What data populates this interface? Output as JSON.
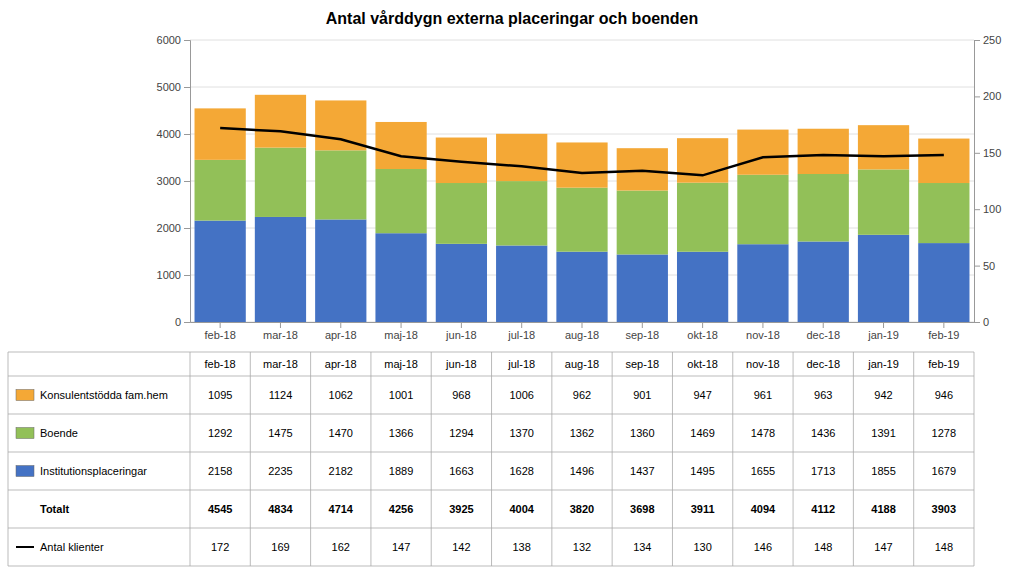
{
  "chart_data": {
    "type": "bar",
    "title": "Antal vårddygn externa placeringar och boenden",
    "categories": [
      "feb-18",
      "mar-18",
      "apr-18",
      "maj-18",
      "jun-18",
      "jul-18",
      "aug-18",
      "sep-18",
      "okt-18",
      "nov-18",
      "dec-18",
      "jan-19",
      "feb-19"
    ],
    "stacked": true,
    "grid": true,
    "series": [
      {
        "name": "Institutionsplaceringar",
        "type": "bar",
        "color": "#4472C4",
        "values": [
          2158,
          2235,
          2182,
          1889,
          1663,
          1628,
          1496,
          1437,
          1495,
          1655,
          1713,
          1855,
          1679
        ]
      },
      {
        "name": "Boende",
        "type": "bar",
        "color": "#92C058",
        "values": [
          1292,
          1475,
          1470,
          1366,
          1294,
          1370,
          1362,
          1360,
          1469,
          1478,
          1436,
          1391,
          1278
        ]
      },
      {
        "name": "Konsulentstödda fam.hem",
        "type": "bar",
        "color": "#F4A836",
        "values": [
          1095,
          1124,
          1062,
          1001,
          968,
          1006,
          962,
          901,
          947,
          961,
          963,
          942,
          946
        ]
      },
      {
        "name": "Antal klienter",
        "type": "line",
        "axis": "y2",
        "color": "#000000",
        "values": [
          172,
          169,
          162,
          147,
          142,
          138,
          132,
          134,
          130,
          146,
          148,
          147,
          148
        ]
      }
    ],
    "total": {
      "name": "Totalt",
      "values": [
        4545,
        4834,
        4714,
        4256,
        3925,
        4004,
        3820,
        3698,
        3911,
        4094,
        4112,
        4188,
        3903
      ]
    },
    "ylim": [
      0,
      6000
    ],
    "yticks": [
      0,
      1000,
      2000,
      3000,
      4000,
      5000,
      6000
    ],
    "y2lim": [
      0,
      250
    ],
    "y2ticks": [
      0,
      50,
      100,
      150,
      200,
      250
    ]
  }
}
